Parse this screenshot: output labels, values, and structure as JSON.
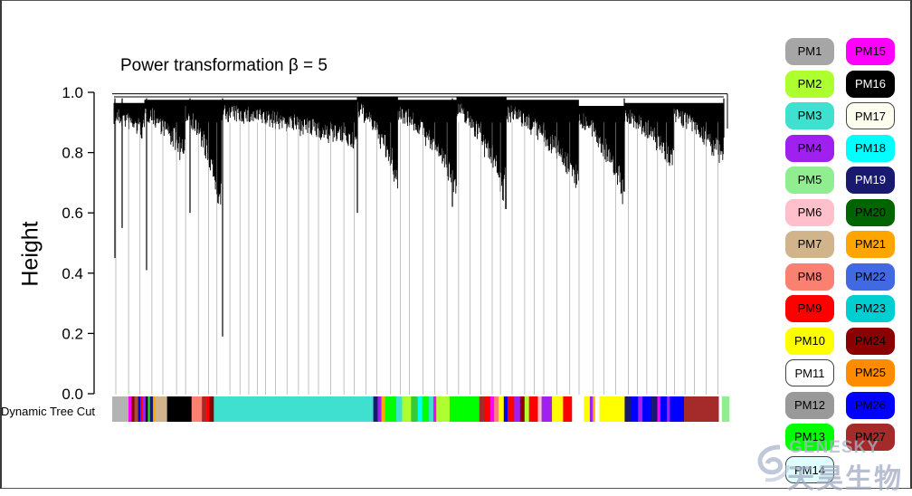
{
  "chart_data": {
    "type": "dendrogram",
    "title": "Power transformation β = 5",
    "ylabel": "Height",
    "ylim": [
      0.0,
      1.0
    ],
    "yticks": [
      "0.0",
      "0.2",
      "0.4",
      "0.6",
      "0.8",
      "1.0"
    ],
    "color_bar_label": "Dynamic Tree Cut",
    "color_bar_segments": [
      {
        "color": "#b3b3b3",
        "weight": 2.2
      },
      {
        "color": "#ff00ff",
        "weight": 0.4
      },
      {
        "color": "#8b0000",
        "weight": 0.4
      },
      {
        "color": "#a0522d",
        "weight": 0.5
      },
      {
        "color": "#0000ff",
        "weight": 0.3
      },
      {
        "color": "#ff0000",
        "weight": 0.3
      },
      {
        "color": "#a020f0",
        "weight": 0.4
      },
      {
        "color": "#000000",
        "weight": 0.3
      },
      {
        "color": "#32cd32",
        "weight": 0.3
      },
      {
        "color": "#191970",
        "weight": 0.4
      },
      {
        "color": "#ffa500",
        "weight": 0.3
      },
      {
        "color": "#d2b48c",
        "weight": 1.6
      },
      {
        "color": "#000000",
        "weight": 3.3
      },
      {
        "color": "#fa8072",
        "weight": 1.4
      },
      {
        "color": "#a52a2a",
        "weight": 0.6
      },
      {
        "color": "#ff0000",
        "weight": 0.4
      },
      {
        "color": "#8b0000",
        "weight": 0.6
      },
      {
        "color": "#40e0d0",
        "weight": 21.5
      },
      {
        "color": "#191970",
        "weight": 0.6
      },
      {
        "color": "#a020f0",
        "weight": 0.5
      },
      {
        "color": "#ffa500",
        "weight": 0.5
      },
      {
        "color": "#00ff00",
        "weight": 1.5
      },
      {
        "color": "#40e0d0",
        "weight": 0.8
      },
      {
        "color": "#adff2f",
        "weight": 1.2
      },
      {
        "color": "#32cd32",
        "weight": 0.9
      },
      {
        "color": "#00ffff",
        "weight": 0.6
      },
      {
        "color": "#00ff00",
        "weight": 0.9
      },
      {
        "color": "#40e0d0",
        "weight": 0.6
      },
      {
        "color": "#ff00ff",
        "weight": 0.4
      },
      {
        "color": "#adff2f",
        "weight": 1.8
      },
      {
        "color": "#00ff00",
        "weight": 4.0
      },
      {
        "color": "#a52a2a",
        "weight": 0.7
      },
      {
        "color": "#ff0000",
        "weight": 0.8
      },
      {
        "color": "#ff00ff",
        "weight": 0.5
      },
      {
        "color": "#fa8072",
        "weight": 0.6
      },
      {
        "color": "#ffff00",
        "weight": 0.7
      },
      {
        "color": "#0000ff",
        "weight": 0.5
      },
      {
        "color": "#ff0000",
        "weight": 0.9
      },
      {
        "color": "#a020f0",
        "weight": 0.8
      },
      {
        "color": "#8b0000",
        "weight": 0.6
      },
      {
        "color": "#adff2f",
        "weight": 0.6
      },
      {
        "color": "#ff0000",
        "weight": 1.2
      },
      {
        "color": "#ffc0cb",
        "weight": 0.5
      },
      {
        "color": "#a020f0",
        "weight": 1.4
      },
      {
        "color": "#ffff00",
        "weight": 1.5
      },
      {
        "color": "#ff0000",
        "weight": 1.2
      },
      {
        "color": "#ffffff",
        "weight": 1.6
      },
      {
        "color": "#ffff00",
        "weight": 0.8
      },
      {
        "color": "#a020f0",
        "weight": 0.4
      },
      {
        "color": "#ffa500",
        "weight": 0.3
      },
      {
        "color": "#ffffff",
        "weight": 0.6
      },
      {
        "color": "#ffff00",
        "weight": 3.4
      },
      {
        "color": "#191970",
        "weight": 0.8
      },
      {
        "color": "#0000ff",
        "weight": 1.0
      },
      {
        "color": "#a020f0",
        "weight": 0.6
      },
      {
        "color": "#0000ff",
        "weight": 1.2
      },
      {
        "color": "#191970",
        "weight": 0.8
      },
      {
        "color": "#ff00ff",
        "weight": 0.4
      },
      {
        "color": "#0000ff",
        "weight": 0.9
      },
      {
        "color": "#a020f0",
        "weight": 0.4
      },
      {
        "color": "#0000ff",
        "weight": 1.9
      },
      {
        "color": "#a52a2a",
        "weight": 4.7
      },
      {
        "color": "#ffffff",
        "weight": 0.4
      },
      {
        "color": "#90ee90",
        "weight": 1.0
      }
    ]
  },
  "legend": [
    {
      "label": "PM1",
      "color": "#a6a6a6",
      "text_color": "#000000"
    },
    {
      "label": "PM2",
      "color": "#adff2f",
      "text_color": "#000000"
    },
    {
      "label": "PM3",
      "color": "#40e0d0",
      "text_color": "#000000"
    },
    {
      "label": "PM4",
      "color": "#a020f0",
      "text_color": "#000000"
    },
    {
      "label": "PM5",
      "color": "#90ee90",
      "text_color": "#000000"
    },
    {
      "label": "PM6",
      "color": "#ffc0cb",
      "text_color": "#000000"
    },
    {
      "label": "PM7",
      "color": "#d2b48c",
      "text_color": "#000000"
    },
    {
      "label": "PM8",
      "color": "#fa8072",
      "text_color": "#000000"
    },
    {
      "label": "PM9",
      "color": "#ff0000",
      "text_color": "#000000"
    },
    {
      "label": "PM10",
      "color": "#ffff00",
      "text_color": "#000000"
    },
    {
      "label": "PM11",
      "color": "#ffffff",
      "text_color": "#000000"
    },
    {
      "label": "PM12",
      "color": "#999999",
      "text_color": "#000000"
    },
    {
      "label": "PM13",
      "color": "#00ff00",
      "text_color": "#000000"
    },
    {
      "label": "PM14",
      "color": "#e0ffff",
      "text_color": "#000000"
    },
    {
      "label": "PM15",
      "color": "#ff00ff",
      "text_color": "#000000"
    },
    {
      "label": "PM16",
      "color": "#000000",
      "text_color": "#ffffff"
    },
    {
      "label": "PM17",
      "color": "#fffff0",
      "text_color": "#000000"
    },
    {
      "label": "PM18",
      "color": "#00ffff",
      "text_color": "#000000"
    },
    {
      "label": "PM19",
      "color": "#191970",
      "text_color": "#ffffff"
    },
    {
      "label": "PM20",
      "color": "#006400",
      "text_color": "#000000"
    },
    {
      "label": "PM21",
      "color": "#ffa500",
      "text_color": "#000000"
    },
    {
      "label": "PM22",
      "color": "#4169e1",
      "text_color": "#000000"
    },
    {
      "label": "PM23",
      "color": "#00ced1",
      "text_color": "#000000"
    },
    {
      "label": "PM24",
      "color": "#8b0000",
      "text_color": "#000000"
    },
    {
      "label": "PM25",
      "color": "#ff8c00",
      "text_color": "#000000"
    },
    {
      "label": "PM26",
      "color": "#0000ff",
      "text_color": "#000000"
    },
    {
      "label": "PM27",
      "color": "#a52a2a",
      "text_color": "#000000"
    }
  ],
  "watermark": {
    "en": "GENESKY",
    "cn": "天昊生物"
  }
}
